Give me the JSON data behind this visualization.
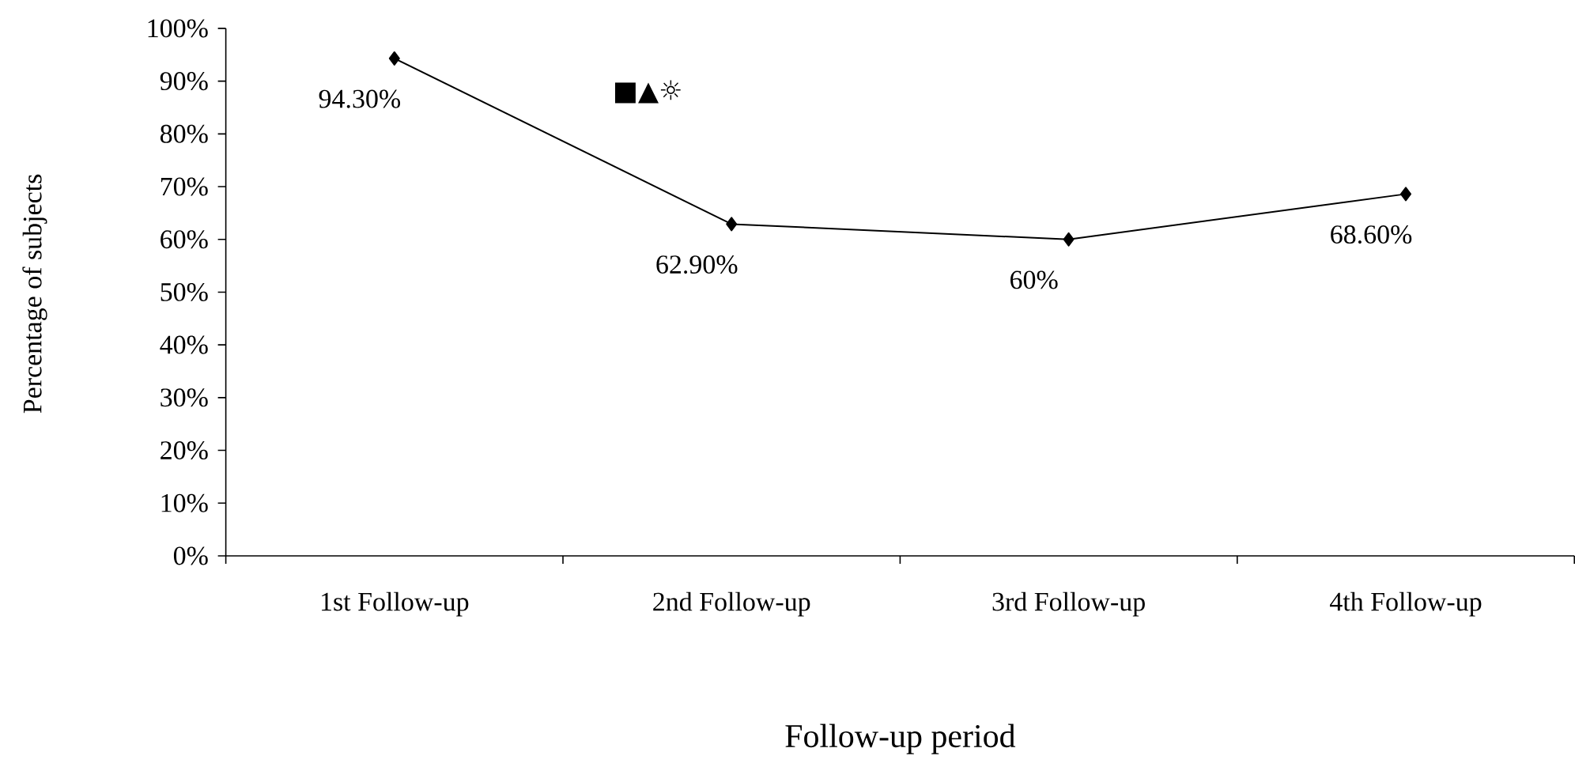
{
  "chart_data": {
    "type": "line",
    "xlabel": "Follow-up period",
    "ylabel": "Percentage of subjects",
    "categories": [
      "1st Follow-up",
      "2nd Follow-up",
      "3rd Follow-up",
      "4th Follow-up"
    ],
    "values": [
      94.3,
      62.9,
      60,
      68.6
    ],
    "value_labels": [
      "94.30%",
      "62.90%",
      "60%",
      "68.60%"
    ],
    "color": "#000000",
    "marker": "diamond",
    "line_style": "solid",
    "ylim": [
      0,
      100
    ],
    "yticks": [
      {
        "value": 0,
        "label": "0%"
      },
      {
        "value": 10,
        "label": "10%"
      },
      {
        "value": 20,
        "label": "20%"
      },
      {
        "value": 30,
        "label": "30%"
      },
      {
        "value": 40,
        "label": "40%"
      },
      {
        "value": 50,
        "label": "50%"
      },
      {
        "value": 60,
        "label": "60%"
      },
      {
        "value": 70,
        "label": "70%"
      },
      {
        "value": 80,
        "label": "80%"
      },
      {
        "value": 90,
        "label": "90%"
      },
      {
        "value": 100,
        "label": "100%"
      }
    ],
    "annotations": [
      "■▲☼"
    ]
  }
}
